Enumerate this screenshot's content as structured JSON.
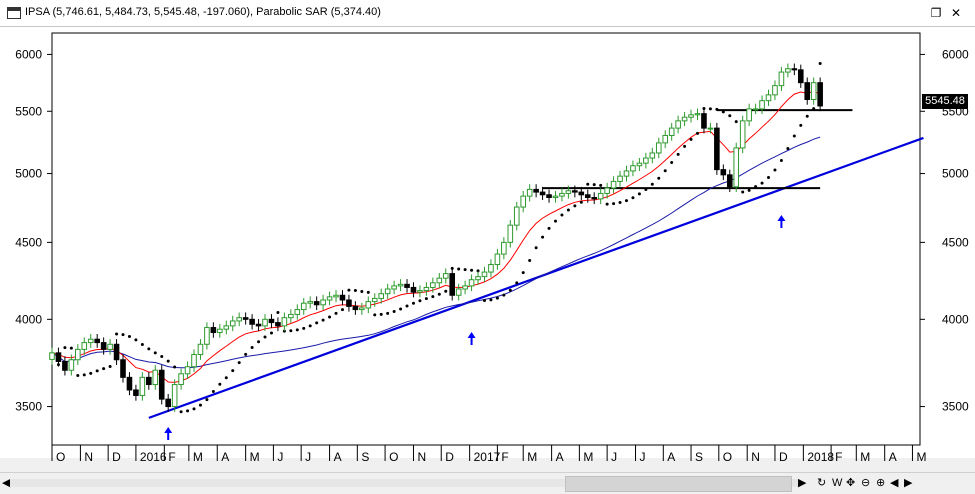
{
  "window": {
    "title": "IPSA (5,746.61, 5,484.73, 5,545.48, -197.060), Parabolic SAR (5,374.40)",
    "restore_icon": "restore-icon",
    "close_icon": "close-icon"
  },
  "price_label": "5545.48",
  "scrollbar": {
    "left_arrow": "◀",
    "right_arrow": "▶",
    "buttons": [
      "↻",
      "W",
      "✥",
      "⊖",
      "⊕",
      "◀",
      "▶"
    ]
  },
  "colors": {
    "bull": "#2e9a2e",
    "bear": "#000000",
    "ema": "#ff0000",
    "sma": "#1a1aa8",
    "trend": "#0000dd",
    "arrow": "#0000ff"
  },
  "chart_data": {
    "type": "candlestick",
    "title": "",
    "ylim": [
      3300,
      6200
    ],
    "y_log_scale": true,
    "y_ticks": [
      3500,
      4000,
      4500,
      5000,
      5500,
      6000
    ],
    "x_tick_labels": [
      "O",
      "N",
      "D",
      "2016",
      "F",
      "M",
      "A",
      "M",
      "J",
      "J",
      "A",
      "S",
      "O",
      "N",
      "D",
      "2017",
      "F",
      "M",
      "A",
      "M",
      "J",
      "J",
      "A",
      "S",
      "O",
      "N",
      "D",
      "2018",
      "F",
      "M",
      "A",
      "M"
    ],
    "x_tick_weeks": [
      0,
      4.4,
      8.7,
      13,
      17.4,
      21.2,
      25.6,
      30,
      34.3,
      38.6,
      43,
      47.3,
      51.6,
      56,
      60.3,
      64.7,
      69,
      73,
      77.4,
      81.7,
      86,
      90.4,
      94.7,
      99,
      103.3,
      107.7,
      112,
      116.4,
      120.7,
      124.6,
      129,
      133.3
    ],
    "weekly_close": [
      3800,
      3750,
      3700,
      3760,
      3820,
      3860,
      3880,
      3860,
      3820,
      3850,
      3760,
      3660,
      3590,
      3560,
      3660,
      3620,
      3700,
      3540,
      3500,
      3620,
      3680,
      3720,
      3790,
      3850,
      3950,
      3920,
      3940,
      3960,
      3990,
      4010,
      4000,
      3970,
      3960,
      4000,
      3980,
      3960,
      4010,
      4030,
      4060,
      4100,
      4110,
      4090,
      4120,
      4140,
      4150,
      4120,
      4080,
      4060,
      4070,
      4110,
      4130,
      4160,
      4190,
      4210,
      4220,
      4200,
      4170,
      4180,
      4200,
      4230,
      4260,
      4290,
      4150,
      4190,
      4210,
      4250,
      4270,
      4300,
      4350,
      4420,
      4500,
      4620,
      4750,
      4830,
      4880,
      4860,
      4840,
      4820,
      4830,
      4850,
      4870,
      4860,
      4840,
      4820,
      4810,
      4850,
      4890,
      4940,
      4980,
      5020,
      5060,
      5080,
      5120,
      5160,
      5240,
      5300,
      5360,
      5420,
      5450,
      5470,
      5480,
      5360,
      5360,
      5030,
      4990,
      4900,
      5200,
      5420,
      5520,
      5520,
      5590,
      5640,
      5720,
      5840,
      5870,
      5860,
      5746,
      5600,
      5746,
      5545
    ],
    "ema_label": "",
    "ema_period": 10,
    "sma_period": 40,
    "parabolic_sar_last": 5374.4,
    "trendlines": [
      {
        "x1": 15,
        "y1": 3440,
        "x2": 135,
        "y2": 5280,
        "color": "#0000dd",
        "width": 2.2
      },
      {
        "x1": 76,
        "y1": 4890,
        "x2": 119,
        "y2": 4890,
        "color": "#000000",
        "width": 2
      },
      {
        "x1": 103,
        "y1": 5510,
        "x2": 124,
        "y2": 5510,
        "color": "#000000",
        "width": 2
      }
    ],
    "arrows_at_week": [
      18,
      65,
      113
    ],
    "last_close": 5545.48
  }
}
